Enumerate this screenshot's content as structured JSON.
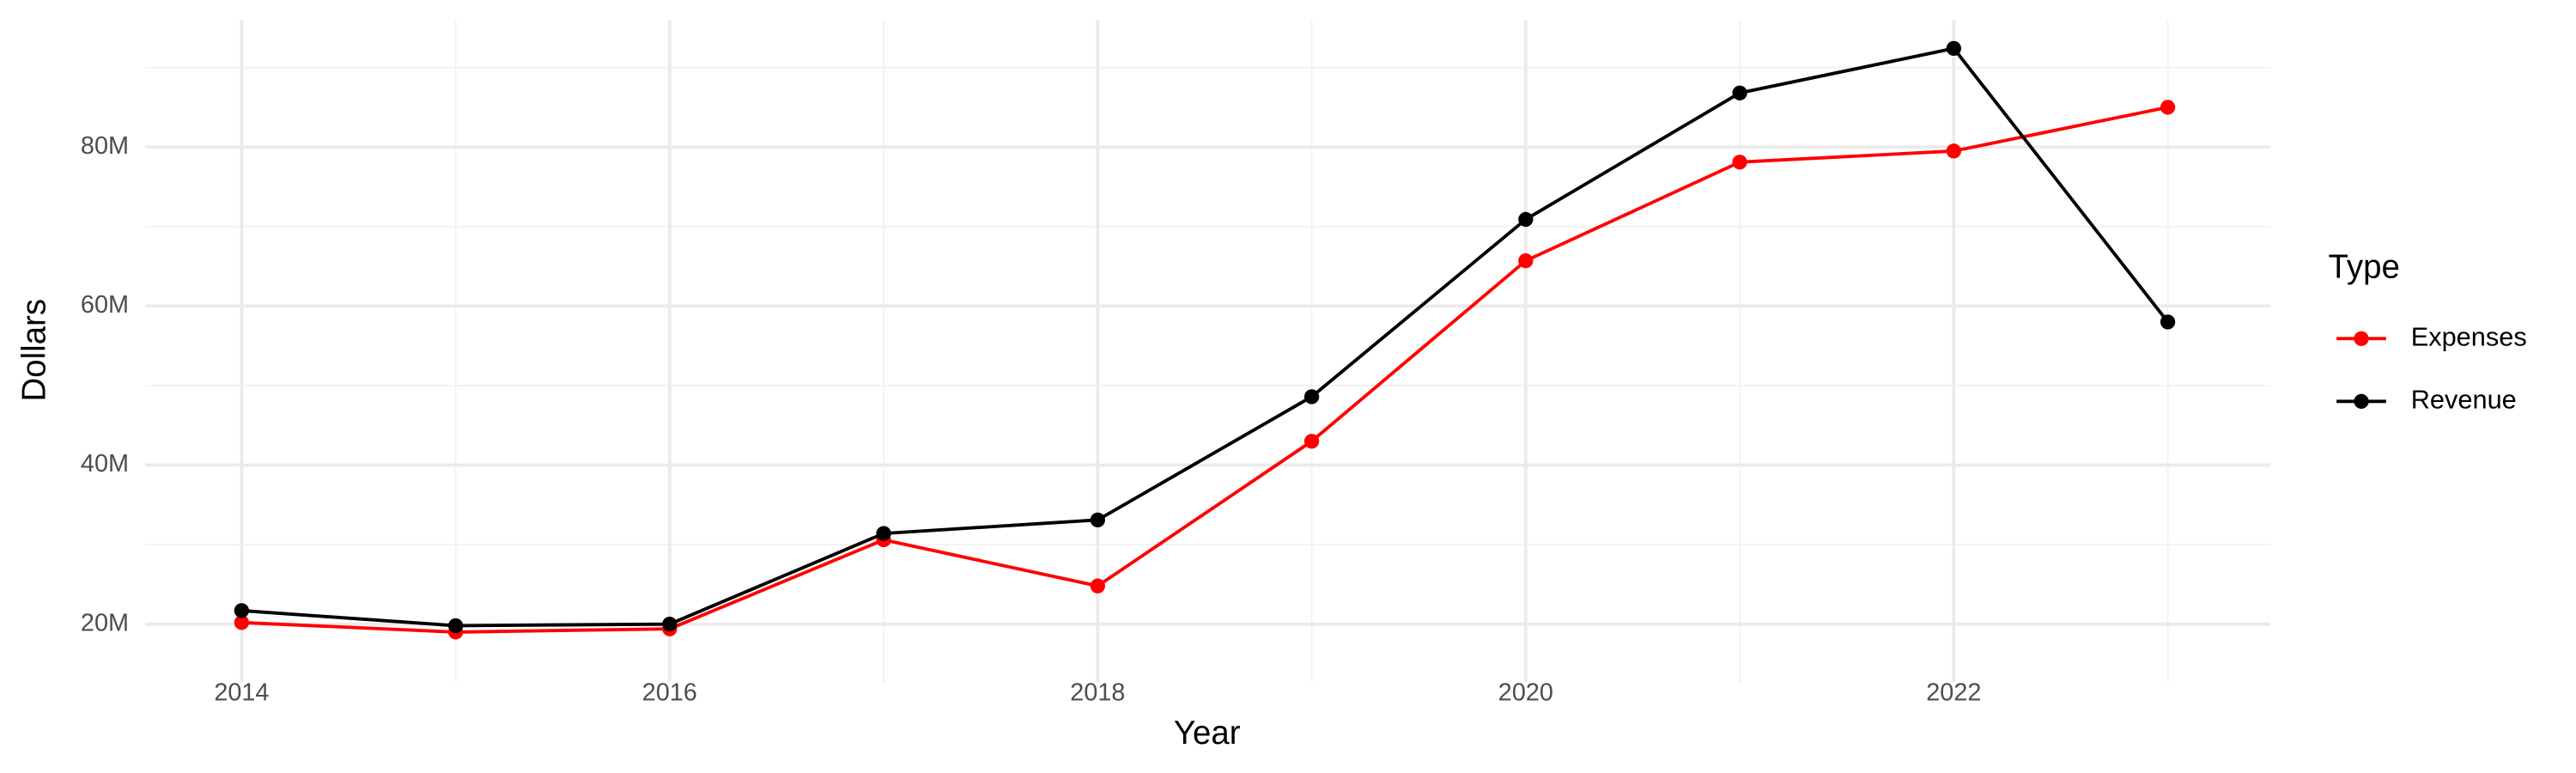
{
  "chart_data": {
    "type": "line",
    "x_label": "Year",
    "y_label": "Dollars",
    "legend_title": "Type",
    "legend_position": "right",
    "grid": true,
    "x": [
      2014,
      2015,
      2016,
      2017,
      2018,
      2019,
      2020,
      2021,
      2022,
      2023
    ],
    "series": [
      {
        "name": "Expenses",
        "color": "#ff0000",
        "values": [
          20200000,
          19000000,
          19400000,
          30600000,
          24800000,
          43000000,
          65700000,
          78100000,
          79500000,
          85000000
        ]
      },
      {
        "name": "Revenue",
        "color": "#000000",
        "values": [
          21700000,
          19800000,
          20000000,
          31400000,
          33100000,
          48600000,
          70900000,
          86800000,
          92400000,
          58000000
        ]
      }
    ],
    "xlim": [
      2013.55,
      2023.48
    ],
    "xticks": [
      2014,
      2016,
      2018,
      2020,
      2022
    ],
    "ylim": [
      12700000,
      96000000
    ],
    "yticks": [
      {
        "value": 20000000,
        "label": "20M"
      },
      {
        "value": 40000000,
        "label": "40M"
      },
      {
        "value": 60000000,
        "label": "60M"
      },
      {
        "value": 80000000,
        "label": "80M"
      }
    ]
  }
}
